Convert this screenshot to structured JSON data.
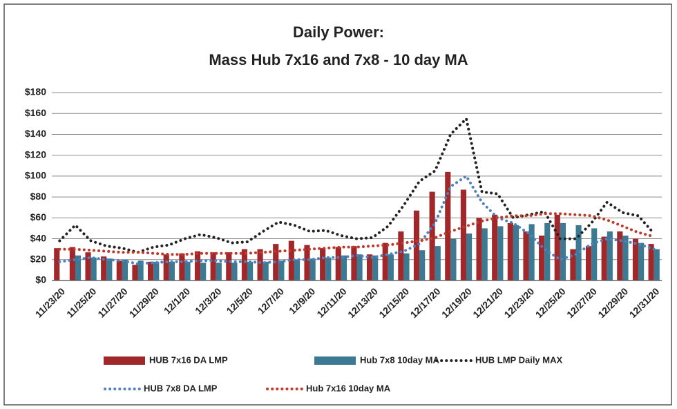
{
  "chart_data": {
    "type": "bar",
    "title": "Daily Power:",
    "subtitle": "Mass Hub 7x16 and 7x8 - 10 day MA",
    "categories": [
      "11/23/20",
      null,
      "11/25/20",
      null,
      "11/27/20",
      null,
      "11/29/20",
      null,
      "12/1/20",
      null,
      "12/3/20",
      null,
      "12/5/20",
      null,
      "12/7/20",
      null,
      "12/9/20",
      null,
      "12/11/20",
      null,
      "12/13/20",
      null,
      "12/15/20",
      null,
      "12/17/20",
      null,
      "12/19/20",
      null,
      "12/21/20",
      null,
      "12/23/20",
      null,
      "12/25/20",
      null,
      "12/27/20",
      null,
      "12/29/20",
      null,
      "12/31/20"
    ],
    "series": [
      {
        "name": "HUB 7x16 DA LMP",
        "kind": "bar",
        "color": "#a0282b",
        "values": [
          31,
          32,
          27,
          23,
          19,
          15,
          18,
          25,
          26,
          28,
          27,
          27,
          30,
          30,
          35,
          38,
          34,
          31,
          32,
          33,
          25,
          36,
          47,
          67,
          85,
          104,
          87,
          60,
          63,
          55,
          47,
          43,
          63,
          30,
          33,
          42,
          47,
          40,
          35
        ]
      },
      {
        "name": "Hub 7x8 10day MA",
        "kind": "bar",
        "color": "#3b7a92",
        "values": [
          null,
          24,
          22,
          21,
          20,
          19,
          18,
          18,
          18,
          17,
          17,
          17,
          18,
          18,
          19,
          20,
          21,
          22,
          24,
          25,
          24,
          25,
          26,
          29,
          33,
          40,
          45,
          50,
          52,
          53,
          54,
          55,
          55,
          53,
          50,
          47,
          43,
          36,
          30
        ]
      },
      {
        "name": "HUB LMP Daily MAX",
        "kind": "line",
        "color": "#222222",
        "values": [
          38,
          53,
          38,
          33,
          31,
          27,
          32,
          34,
          40,
          44,
          41,
          36,
          37,
          47,
          56,
          53,
          47,
          48,
          43,
          40,
          41,
          52,
          72,
          95,
          105,
          140,
          155,
          85,
          83,
          60,
          63,
          66,
          40,
          40,
          55,
          75,
          65,
          62,
          45
        ]
      },
      {
        "name": "HUB 7x8 DA LMP",
        "kind": "line",
        "color": "#4f81bd",
        "values": [
          18,
          20,
          22,
          20,
          19,
          16,
          17,
          18,
          18,
          19,
          19,
          18,
          18,
          17,
          18,
          20,
          20,
          22,
          22,
          24,
          22,
          25,
          28,
          35,
          55,
          90,
          100,
          75,
          60,
          55,
          45,
          30,
          20,
          25,
          35,
          40,
          38,
          35,
          30
        ]
      },
      {
        "name": "Hub 7x16 10day MA",
        "kind": "line",
        "color": "#c0392b",
        "values": [
          30,
          30,
          29,
          28,
          27,
          27,
          26,
          25,
          25,
          26,
          26,
          26,
          26,
          27,
          28,
          29,
          30,
          31,
          32,
          32,
          33,
          34,
          36,
          38,
          41,
          47,
          52,
          57,
          60,
          62,
          62,
          64,
          64,
          63,
          62,
          58,
          52,
          46,
          42
        ]
      }
    ],
    "ylim": [
      0,
      180
    ],
    "yticks": [
      {
        "value": 0,
        "label": "$0"
      },
      {
        "value": 20,
        "label": "$20"
      },
      {
        "value": 40,
        "label": "$40"
      },
      {
        "value": 60,
        "label": "$60"
      },
      {
        "value": 80,
        "label": "$80"
      },
      {
        "value": 100,
        "label": "$100"
      },
      {
        "value": 120,
        "label": "$120"
      },
      {
        "value": 140,
        "label": "$140"
      },
      {
        "value": 160,
        "label": "$160"
      },
      {
        "value": 180,
        "label": "$180"
      }
    ],
    "grid": true
  }
}
